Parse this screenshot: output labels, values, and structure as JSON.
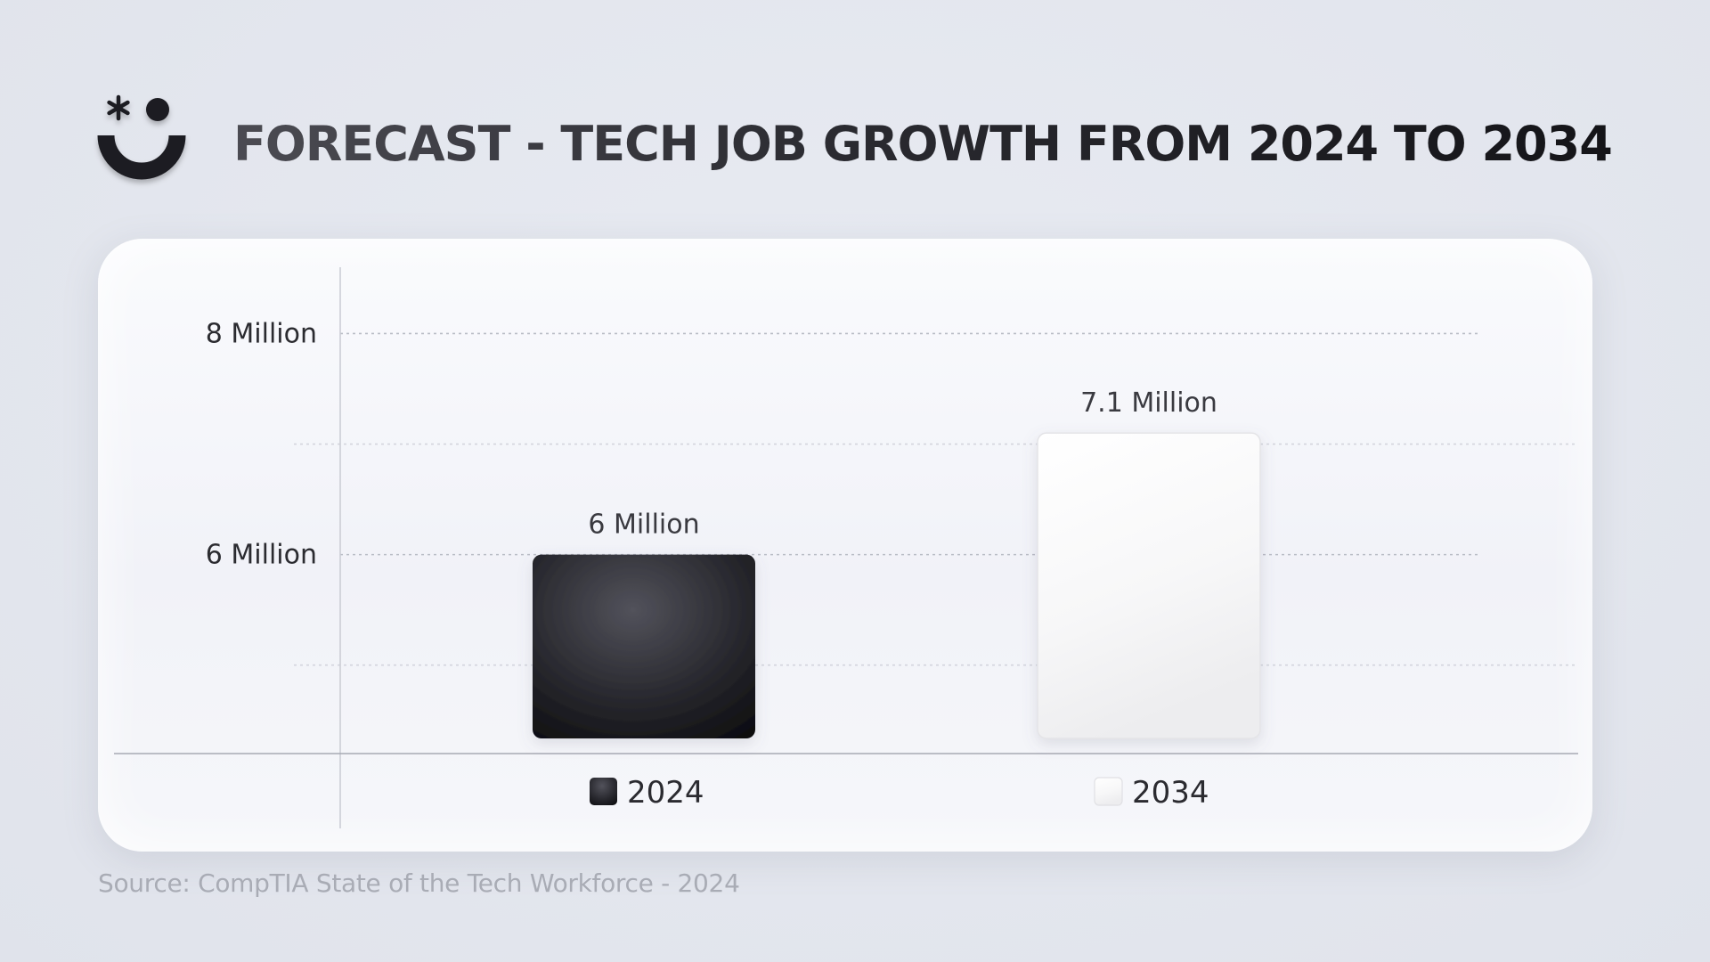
{
  "title": "FORECAST - TECH JOB GROWTH FROM 2024 TO 2034",
  "source": "Source: CompTIA State of the Tech Workforce - 2024",
  "logo": {
    "icon": "asterisk-smile-logo-icon"
  },
  "colors": {
    "bar_2024": "#1c1c21",
    "bar_2034": "#f4f4f5",
    "text_dark": "#2b2b30",
    "text_muted": "#a9acb5"
  },
  "chart_data": {
    "type": "bar",
    "title": "FORECAST - TECH JOB GROWTH FROM 2024 TO 2034",
    "categories": [
      "2024",
      "2034"
    ],
    "values": [
      6,
      7.1
    ],
    "value_unit": "Million",
    "data_labels": [
      "6 Million",
      "7.1 Million"
    ],
    "y_ticks": [
      {
        "value": 6,
        "label": "6 Million"
      },
      {
        "value": 8,
        "label": "8 Million"
      }
    ],
    "ylim": [
      4.2,
      8.6
    ],
    "grid": true,
    "legend": {
      "placement": "bottom",
      "entries": [
        {
          "label": "2024",
          "color": "#1c1c21"
        },
        {
          "label": "2034",
          "color": "#f4f4f5"
        }
      ]
    },
    "xlabel": "",
    "ylabel": ""
  }
}
